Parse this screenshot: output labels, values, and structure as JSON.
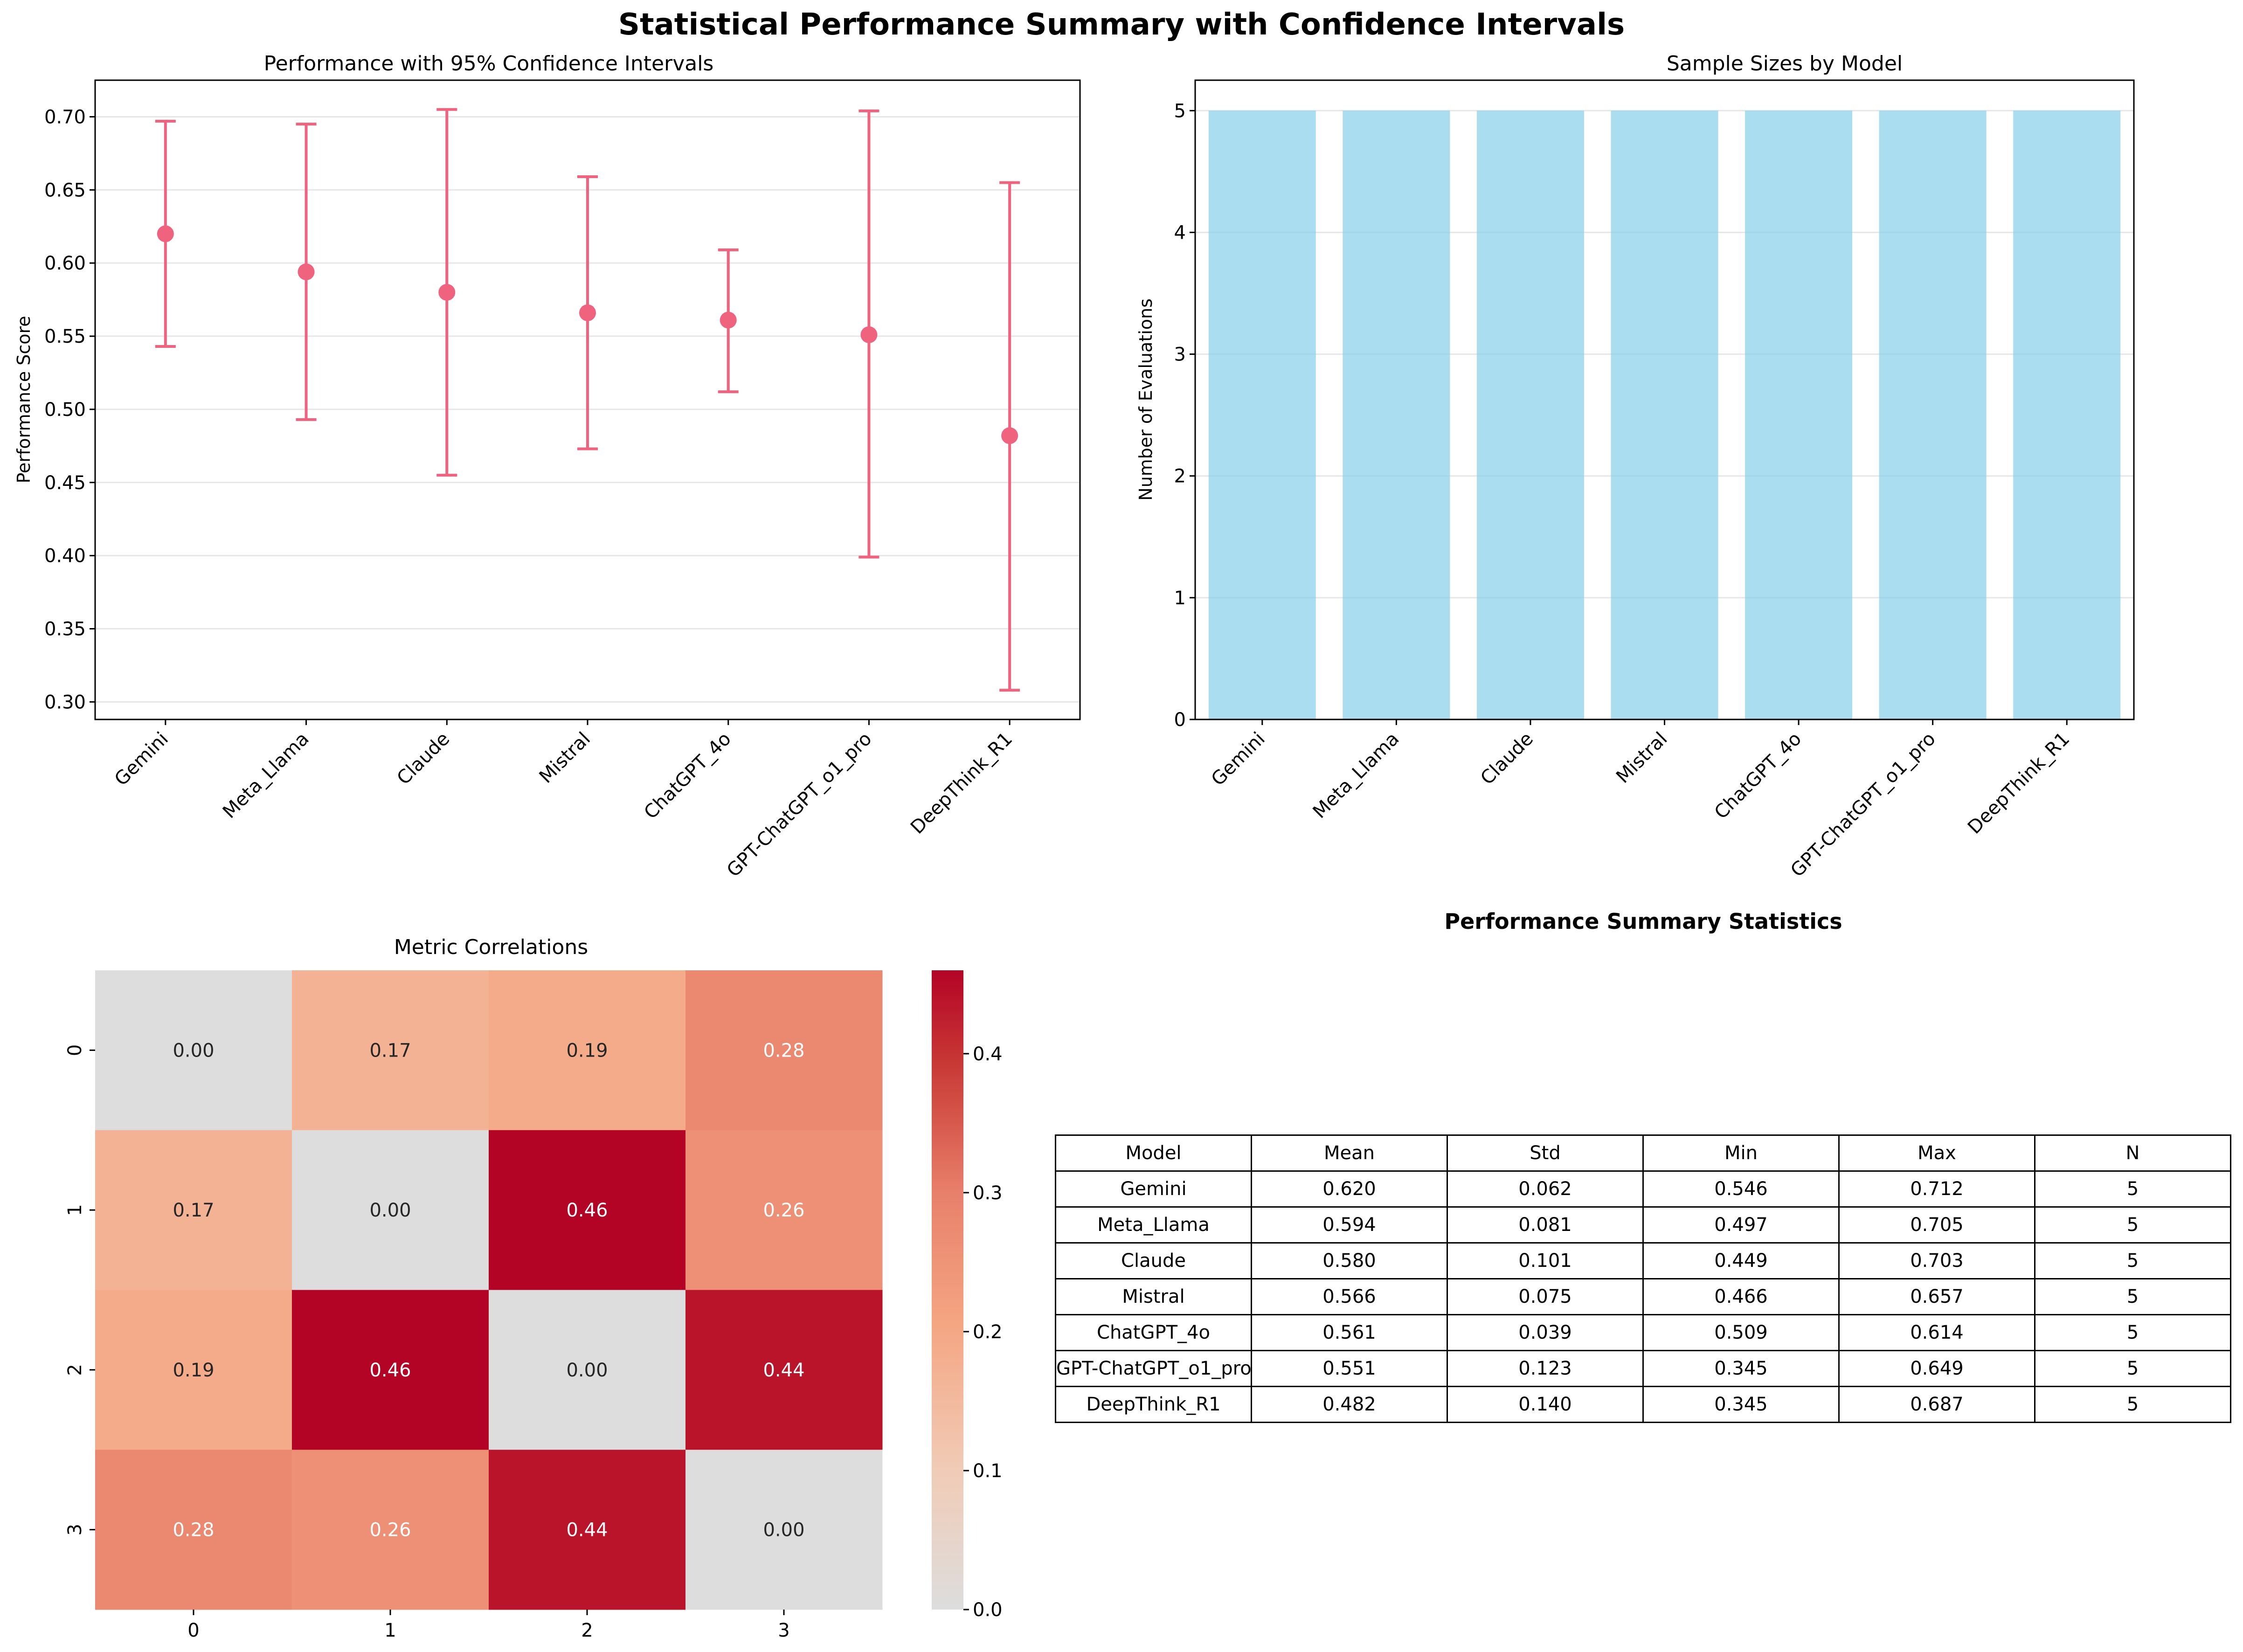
{
  "chart_data": [
    {
      "type": "errorbar",
      "figure_title": "Statistical Performance Summary with Confidence Intervals",
      "title": "Performance with 95% Confidence Intervals",
      "xlabel": "",
      "ylabel": "Performance Score",
      "categories": [
        "Gemini",
        "Meta_Llama",
        "Claude",
        "Mistral",
        "ChatGPT_4o",
        "GPT-ChatGPT_o1_pro",
        "DeepThink_R1"
      ],
      "means": [
        0.62,
        0.594,
        0.58,
        0.566,
        0.561,
        0.551,
        0.482
      ],
      "ci_lower": [
        0.543,
        0.493,
        0.455,
        0.473,
        0.512,
        0.399,
        0.308
      ],
      "ci_upper": [
        0.697,
        0.695,
        0.705,
        0.659,
        0.609,
        0.704,
        0.655
      ],
      "ylim": [
        0.288,
        0.725
      ],
      "yticks": [
        "0.30",
        "0.35",
        "0.40",
        "0.45",
        "0.50",
        "0.55",
        "0.60",
        "0.65",
        "0.70"
      ],
      "grid": true,
      "color": "#f0637f"
    },
    {
      "type": "bar",
      "title": "Sample Sizes by Model",
      "xlabel": "",
      "ylabel": "Number of Evaluations",
      "categories": [
        "Gemini",
        "Meta_Llama",
        "Claude",
        "Mistral",
        "ChatGPT_4o",
        "GPT-ChatGPT_o1_pro",
        "DeepThink_R1"
      ],
      "values": [
        5,
        5,
        5,
        5,
        5,
        5,
        5
      ],
      "ylim": [
        0,
        5.25
      ],
      "yticks": [
        "0",
        "1",
        "2",
        "3",
        "4",
        "5"
      ],
      "grid": true,
      "color": "#87ceeb"
    },
    {
      "type": "heatmap",
      "title": "Metric Correlations",
      "row_labels": [
        "0",
        "1",
        "2",
        "3"
      ],
      "col_labels": [
        "0",
        "1",
        "2",
        "3"
      ],
      "values": [
        [
          0.0,
          0.17,
          0.19,
          0.28
        ],
        [
          0.17,
          0.0,
          0.46,
          0.26
        ],
        [
          0.19,
          0.46,
          0.0,
          0.44
        ],
        [
          0.28,
          0.26,
          0.44,
          0.0
        ]
      ],
      "cell_labels": [
        [
          "0.00",
          "0.17",
          "0.19",
          "0.28"
        ],
        [
          "0.17",
          "0.00",
          "0.46",
          "0.26"
        ],
        [
          "0.19",
          "0.46",
          "0.00",
          "0.44"
        ],
        [
          "0.28",
          "0.26",
          "0.44",
          "0.00"
        ]
      ],
      "colormap": "coolwarm",
      "vmin": 0,
      "vmax": 0.46,
      "colorbar_ticks": [
        "0.0",
        "0.1",
        "0.2",
        "0.3",
        "0.4"
      ]
    },
    {
      "type": "table",
      "title": "Performance Summary Statistics",
      "columns": [
        "Model",
        "Mean",
        "Std",
        "Min",
        "Max",
        "N"
      ],
      "rows": [
        [
          "Gemini",
          "0.620",
          "0.062",
          "0.546",
          "0.712",
          "5"
        ],
        [
          "Meta_Llama",
          "0.594",
          "0.081",
          "0.497",
          "0.705",
          "5"
        ],
        [
          "Claude",
          "0.580",
          "0.101",
          "0.449",
          "0.703",
          "5"
        ],
        [
          "Mistral",
          "0.566",
          "0.075",
          "0.466",
          "0.657",
          "5"
        ],
        [
          "ChatGPT_4o",
          "0.561",
          "0.039",
          "0.509",
          "0.614",
          "5"
        ],
        [
          "GPT-ChatGPT_o1_pro",
          "0.551",
          "0.123",
          "0.345",
          "0.649",
          "5"
        ],
        [
          "DeepThink_R1",
          "0.482",
          "0.140",
          "0.345",
          "0.687",
          "5"
        ]
      ]
    }
  ]
}
